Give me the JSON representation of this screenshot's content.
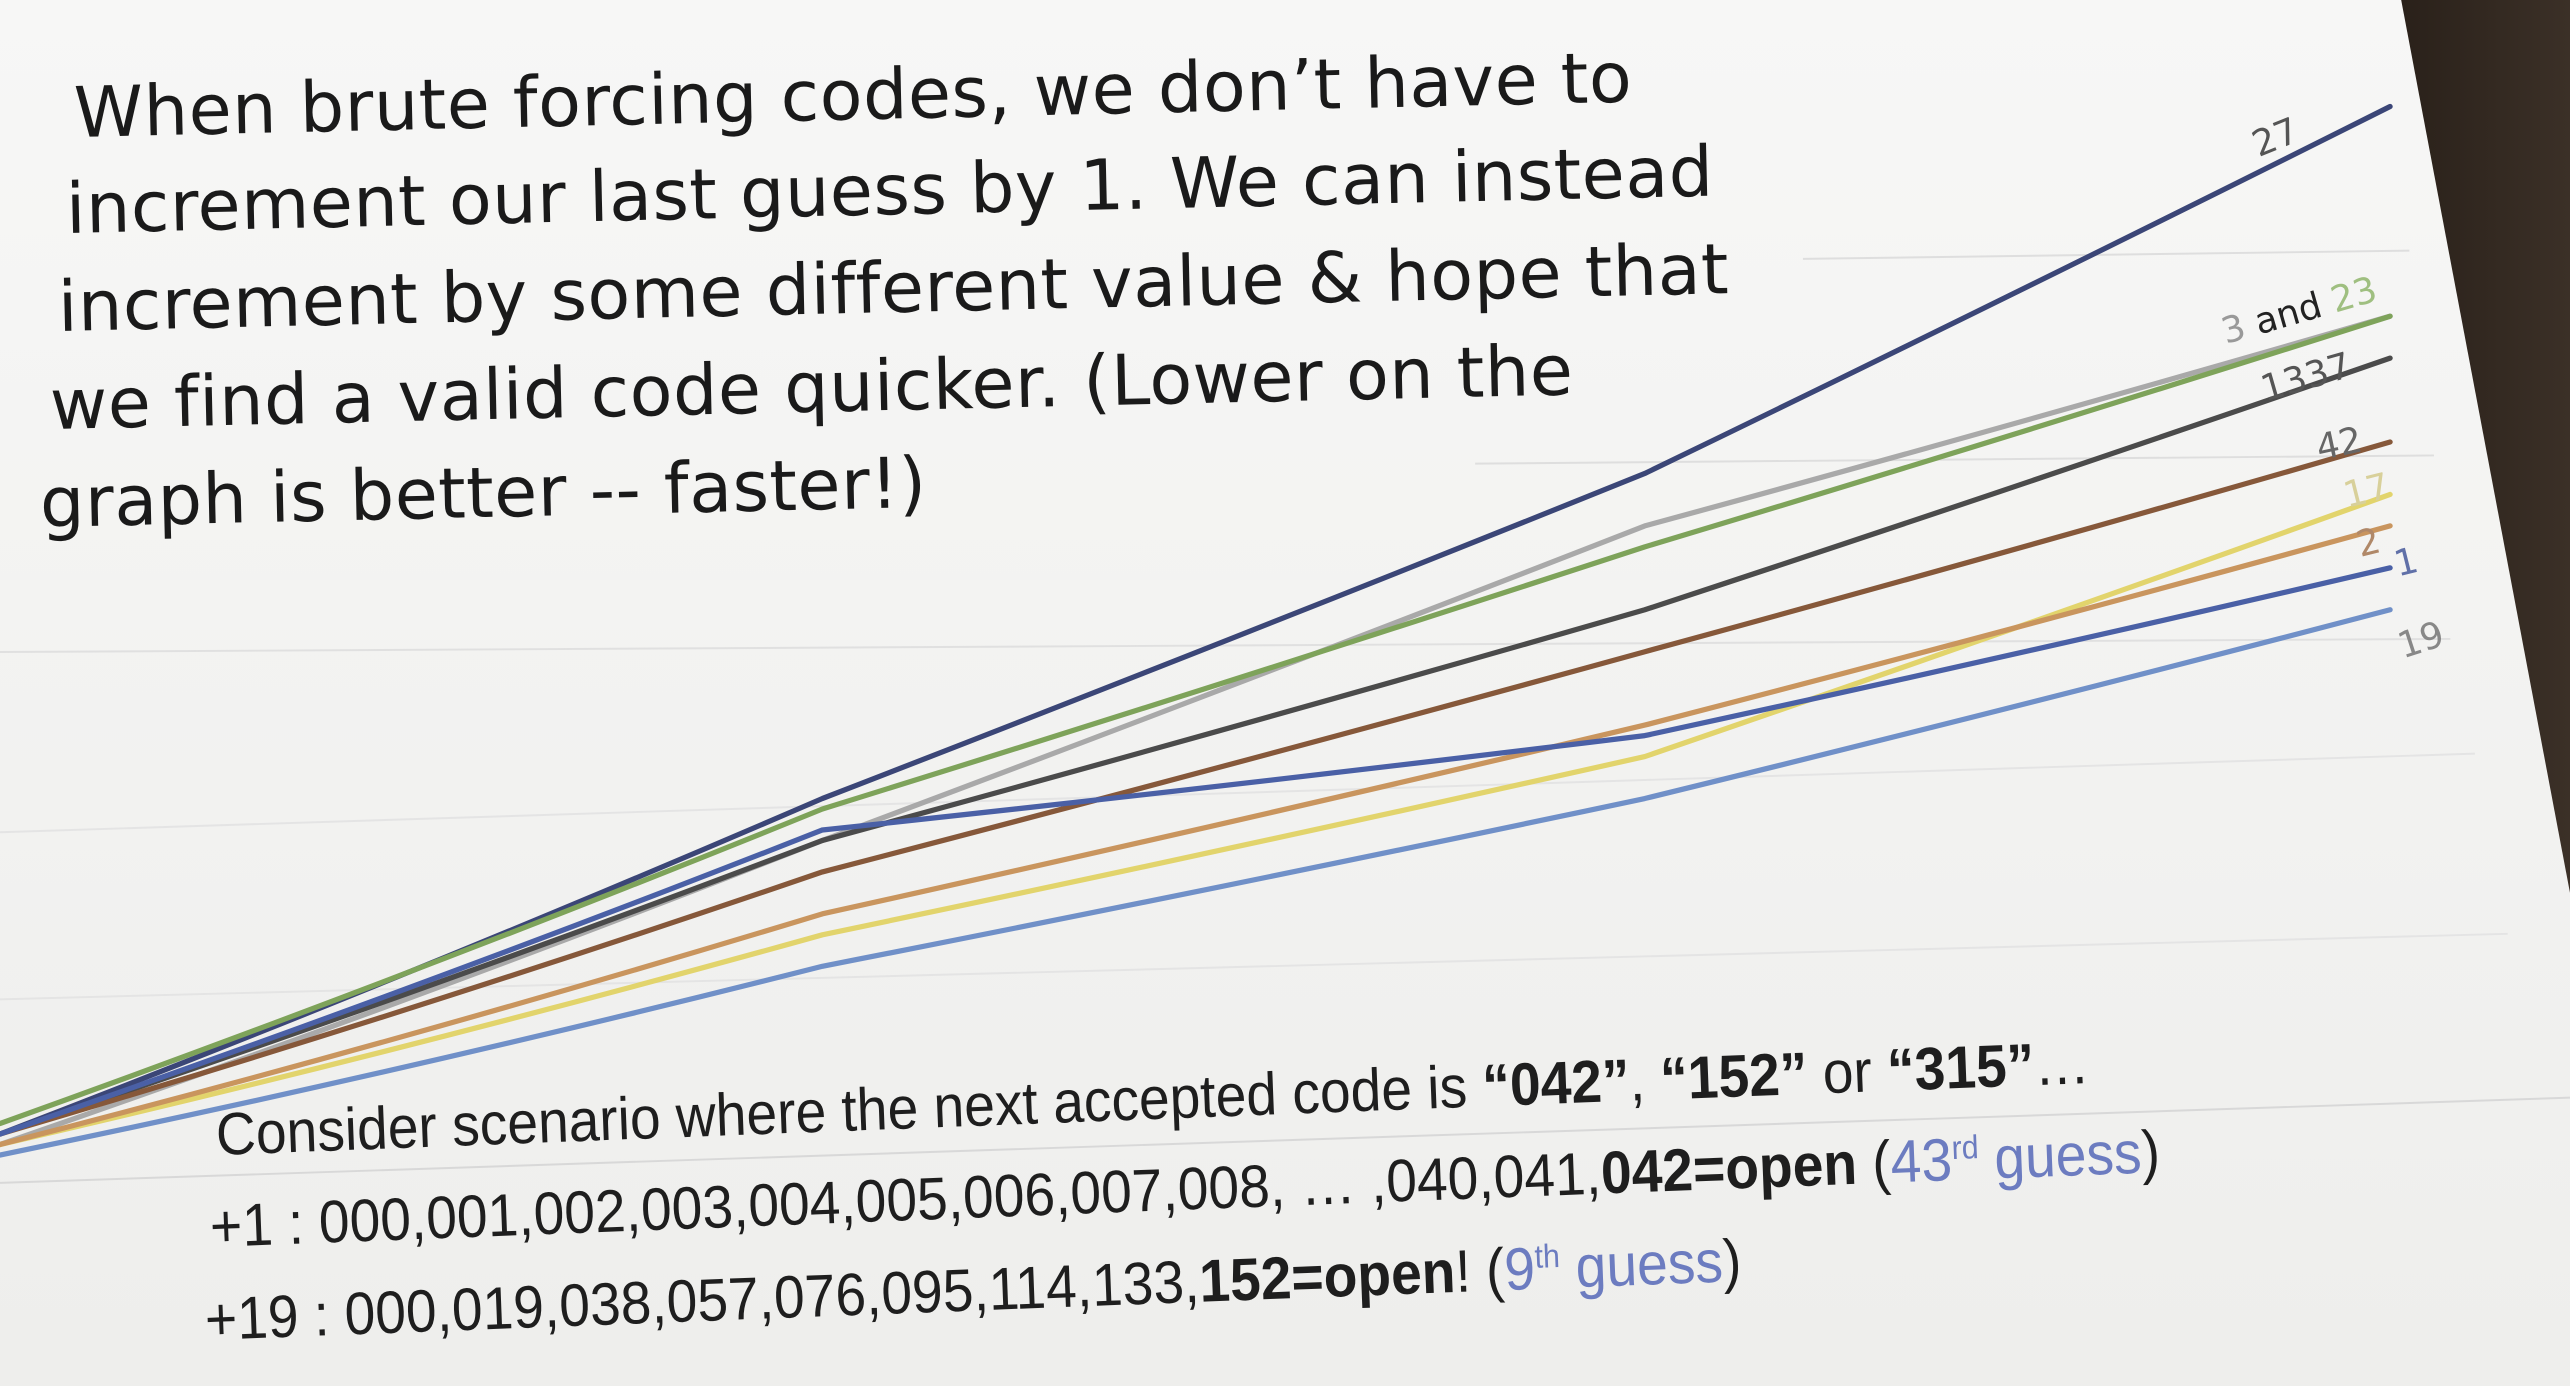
{
  "intro_lines": [
    "When brute forcing codes, we don’t have to",
    "increment our last guess by 1.  We can instead",
    "increment by some different value & hope that",
    "we find a valid code quicker.  (Lower on the",
    "graph is better -- faster!)"
  ],
  "scenario": {
    "line1": {
      "a": "Consider scenario where the next accepted code is ",
      "c1": "“042”",
      "s1": ", ",
      "c2": "“152”",
      "s2": " or ",
      "c3": "“315”",
      "end": "…"
    },
    "line2": {
      "a": "+1   : 000,001,002,003,004,005,006,007,008, … ,040,041,",
      "bold": "042=open",
      "p1": " (",
      "num": "43",
      "sup": "rd",
      "word": " guess",
      "p2": ")"
    },
    "line3": {
      "a": "+19 : 000,019,038,057,076,095,114,133,",
      "bold": "152=open",
      "p1": "! (",
      "num": "9",
      "sup": "th",
      "word": " guess",
      "p2": ")"
    }
  },
  "chart_data": {
    "type": "line",
    "title": "",
    "xlabel": "",
    "ylabel": "",
    "grid": true,
    "legend": "inline labels at line ends (right)",
    "x": [
      0,
      32,
      64,
      93
    ],
    "series": [
      {
        "name": "27",
        "color": "#3b4677",
        "values": [
          2,
          34,
          65,
          100
        ]
      },
      {
        "name": "3",
        "color": "#a9a9a9",
        "values": [
          1,
          30,
          60,
          80
        ]
      },
      {
        "name": "23",
        "color": "#7ea35a",
        "values": [
          3,
          33,
          58,
          80
        ]
      },
      {
        "name": "1337",
        "color": "#4b4b4b",
        "values": [
          2,
          30,
          52,
          76
        ]
      },
      {
        "name": "42",
        "color": "#86583a",
        "values": [
          2,
          27,
          48,
          68
        ]
      },
      {
        "name": "17",
        "color": "#e2d46c",
        "values": [
          1,
          21,
          38,
          63
        ]
      },
      {
        "name": "2",
        "color": "#c9955e",
        "values": [
          1,
          23,
          41,
          60
        ]
      },
      {
        "name": "1",
        "color": "#4a60a6",
        "values": [
          2,
          31,
          40,
          56
        ]
      },
      {
        "name": "19",
        "color": "#7090c8",
        "values": [
          0,
          18,
          34,
          52
        ]
      }
    ],
    "labels": {
      "l27": "27",
      "l3": "3",
      "and": " and ",
      "l23": "23",
      "l1337": "1337",
      "l42": "42",
      "l17": "17",
      "l2": "2",
      "l1": "1",
      "l19": "19"
    }
  }
}
